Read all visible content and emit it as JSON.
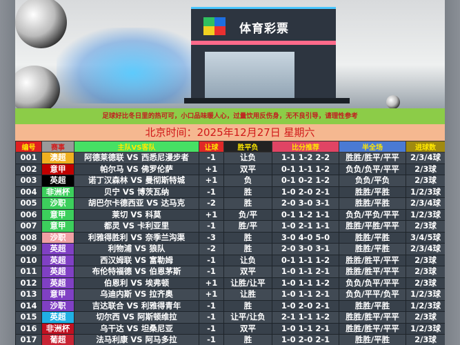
{
  "banner": {
    "store_sign": "体育彩票"
  },
  "slogan": "足球好比冬日里的热可可，小口品味暖人心，过量饮用反伤身，无不良引导，请理性参考",
  "date": "北京时间：2025年12月27日  星期六",
  "headers": [
    {
      "label": "编号",
      "bg": "#e02020"
    },
    {
      "label": "赛事",
      "bg": "#9a9a9a"
    },
    {
      "label": "主队VS客队",
      "bg": "#46e064"
    },
    {
      "label": "让球",
      "bg": "#e02828"
    },
    {
      "label": "胜平负",
      "bg": "#222222"
    },
    {
      "label": "比分推荐",
      "bg": "#e04464"
    },
    {
      "label": "半全场",
      "bg": "#4a7ad4"
    },
    {
      "label": "进球数",
      "bg": "#a08a10"
    }
  ],
  "rows": [
    {
      "no": "001",
      "league": "澳超",
      "color": "#f0b020",
      "match": "阿德莱德联 VS 西悉尼漫步者",
      "hc": "-1",
      "wdl": "让负",
      "score": "1-1 1-2 2-2",
      "htft": "胜胜/胜平/平平",
      "goals": "2/3/4球"
    },
    {
      "no": "002",
      "league": "意甲",
      "color": "#c00000",
      "match": "帕尔马 VS 佛罗伦萨",
      "hc": "+1",
      "wdl": "双平",
      "score": "0-1 1-1 1-2",
      "htft": "负负/负平/平平",
      "goals": "2/3球"
    },
    {
      "no": "003",
      "league": "英超",
      "color": "#000000",
      "match": "诺丁汉森林 VS 曼彻斯特城",
      "hc": "+1",
      "wdl": "负",
      "score": "0-1 0-2 1-2",
      "htft": "负负/平负",
      "goals": "2/3球"
    },
    {
      "no": "004",
      "league": "非洲杯",
      "color": "#3ccf5c",
      "match": "贝宁 VS 博茨瓦纳",
      "hc": "-1",
      "wdl": "胜",
      "score": "1-0 2-0 2-1",
      "htft": "胜胜/平胜",
      "goals": "1/2/3球"
    },
    {
      "no": "005",
      "league": "沙职",
      "color": "#3ccf5c",
      "match": "胡巴尔卡德西亚 VS 达马克",
      "hc": "-2",
      "wdl": "胜",
      "score": "2-0 3-0 3-1",
      "htft": "胜胜/平胜",
      "goals": "2/3/4球"
    },
    {
      "no": "006",
      "league": "意甲",
      "color": "#3ccf5c",
      "match": "莱切 VS 科莫",
      "hc": "+1",
      "wdl": "负/平",
      "score": "0-1 1-2 1-1",
      "htft": "负负/平负/平平",
      "goals": "1/2/3球"
    },
    {
      "no": "007",
      "league": "意甲",
      "color": "#3ccf5c",
      "match": "都灵 VS 卡利亚里",
      "hc": "-1",
      "wdl": "胜/平",
      "score": "1-0 2-1 1-1",
      "htft": "胜胜/平胜/平平",
      "goals": "2/3球"
    },
    {
      "no": "008",
      "league": "沙职",
      "color": "#f0a0a4",
      "match": "利雅得胜利 VS 奈季兰沟渠",
      "hc": "-3",
      "wdl": "胜",
      "score": "3-0 4-0 5-0",
      "htft": "胜胜/平胜",
      "goals": "3/4/5球"
    },
    {
      "no": "009",
      "league": "英超",
      "color": "#8040c4",
      "match": "利物浦 VS 狼队",
      "hc": "-2",
      "wdl": "胜",
      "score": "2-0 3-0 3-1",
      "htft": "胜胜/平胜",
      "goals": "2/3/4球"
    },
    {
      "no": "010",
      "league": "英超",
      "color": "#8040c4",
      "match": "西汉姆联 VS 富勒姆",
      "hc": "-1",
      "wdl": "让负",
      "score": "0-1 1-1 1-2",
      "htft": "胜胜/胜平/平平",
      "goals": "2/3球"
    },
    {
      "no": "011",
      "league": "英超",
      "color": "#8040c4",
      "match": "布伦特福德 VS 伯恩茅斯",
      "hc": "-1",
      "wdl": "双平",
      "score": "1-0 1-1 2-1",
      "htft": "胜胜/胜平/平平",
      "goals": "2/3球"
    },
    {
      "no": "012",
      "league": "英超",
      "color": "#8040c4",
      "match": "伯恩利 VS 埃弗顿",
      "hc": "+1",
      "wdl": "让胜/让平",
      "score": "1-0 1-1 1-2",
      "htft": "负负/负平/平平",
      "goals": "2/3球"
    },
    {
      "no": "013",
      "league": "意甲",
      "color": "#8040c4",
      "match": "乌迪内斯 VS 拉齐奥",
      "hc": "+1",
      "wdl": "让胜",
      "score": "1-0 1-1 2-1",
      "htft": "负负/平平/负平",
      "goals": "1/2/3球"
    },
    {
      "no": "014",
      "league": "沙职",
      "color": "#8040c4",
      "match": "吉达联合 VS 利雅得青年",
      "hc": "-1",
      "wdl": "胜",
      "score": "1-0 2-0 2-1",
      "htft": "胜胜/平胜",
      "goals": "1/2/3球"
    },
    {
      "no": "015",
      "league": "英超",
      "color": "#20b0e4",
      "match": "切尔西 VS 阿斯顿维拉",
      "hc": "-1",
      "wdl": "让平/让负",
      "score": "2-1 1-1 1-2",
      "htft": "胜胜/胜平/平平",
      "goals": "2/3球"
    },
    {
      "no": "016",
      "league": "非洲杯",
      "color": "#c01020",
      "match": "乌干达 VS 坦桑尼亚",
      "hc": "-1",
      "wdl": "双平",
      "score": "1-0 1-1 2-1",
      "htft": "胜胜/胜平/平平",
      "goals": "1/2/3球"
    },
    {
      "no": "017",
      "league": "葡超",
      "color": "#c82434",
      "match": "法马利康 VS 阿马多拉",
      "hc": "-1",
      "wdl": "胜",
      "score": "1-0 2-0 2-1",
      "htft": "胜胜/平胜",
      "goals": "2/3球"
    }
  ]
}
